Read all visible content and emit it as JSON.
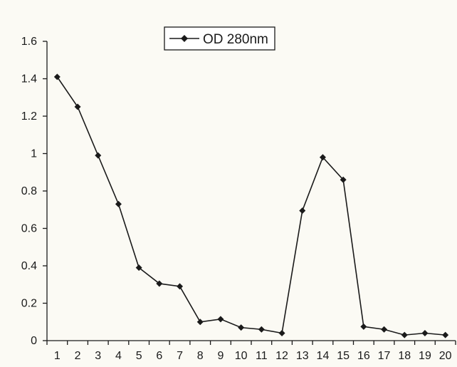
{
  "chart_data": {
    "type": "line",
    "categories": [
      "1",
      "2",
      "3",
      "4",
      "5",
      "6",
      "7",
      "8",
      "9",
      "10",
      "11",
      "12",
      "13",
      "14",
      "15",
      "16",
      "17",
      "18",
      "19",
      "20"
    ],
    "series": [
      {
        "name": "OD 280nm",
        "values": [
          1.41,
          1.25,
          0.99,
          0.73,
          0.39,
          0.305,
          0.29,
          0.1,
          0.115,
          0.07,
          0.06,
          0.04,
          0.695,
          0.98,
          0.86,
          0.075,
          0.06,
          0.03,
          0.04,
          0.03
        ],
        "color": "#1a1a1a",
        "marker": "diamond"
      }
    ],
    "yticks": [
      "0",
      "0.2",
      "0.4",
      "0.6",
      "0.8",
      "1",
      "1.2",
      "1.4",
      "1.6"
    ],
    "ylim": [
      0,
      1.6
    ],
    "title": "",
    "xlabel": "",
    "ylabel": "",
    "grid": false,
    "legend_position": "top-center"
  }
}
